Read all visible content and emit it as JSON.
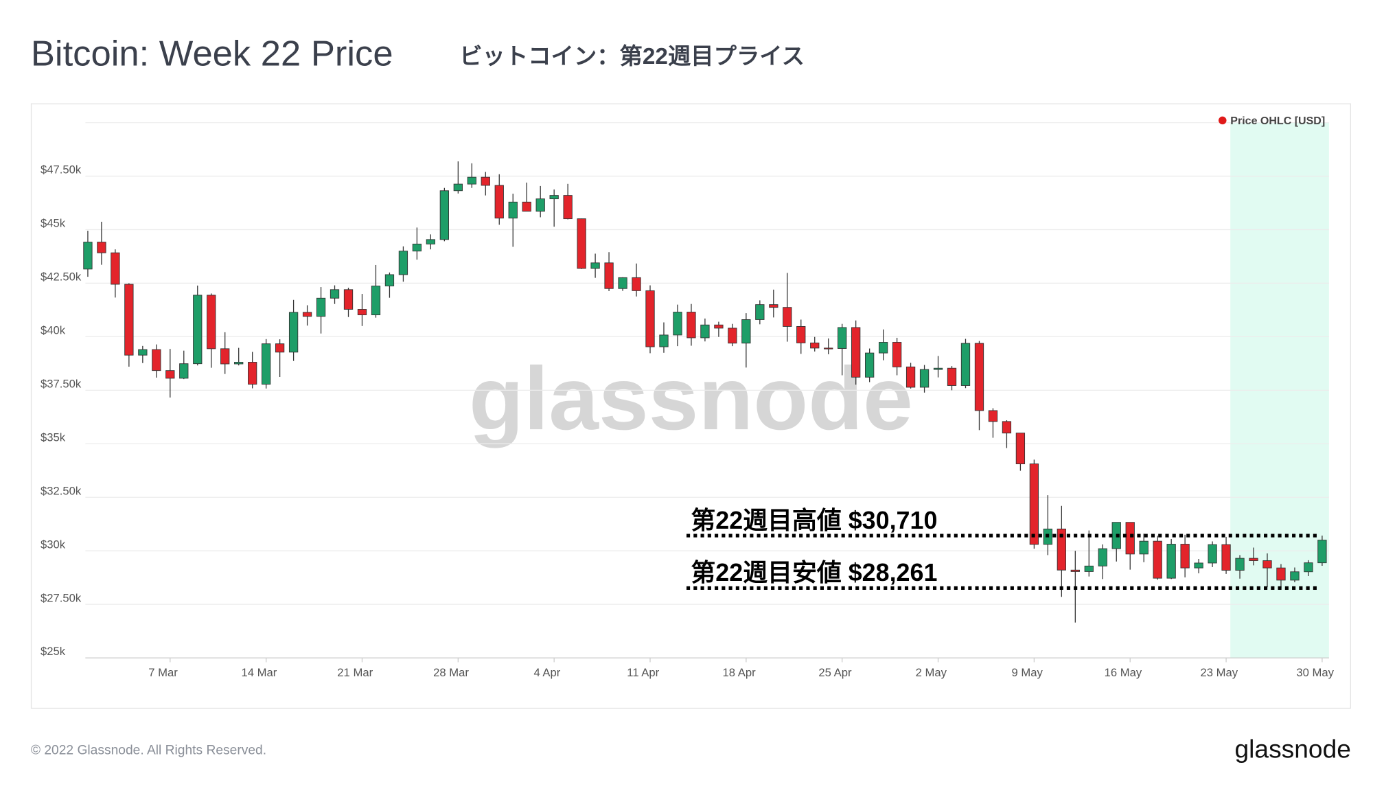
{
  "title": "Bitcoin: Week 22 Price",
  "subtitle": "ビットコイン：第22週目プライス",
  "footer": "© 2022 Glassnode. All Rights Reserved.",
  "logo": "glassnode",
  "chart_data": {
    "type": "candlestick",
    "watermark": "glassnode",
    "legend": "Price OHLC [USD]",
    "legend_color": "#e01a1a",
    "legend_position": "top-right",
    "up_color": "#1e9e68",
    "down_color": "#e3242b",
    "grid": true,
    "ylim": [
      25000,
      50000
    ],
    "yticks": [
      {
        "value": 25000,
        "label": "$25k"
      },
      {
        "value": 27500,
        "label": "$27.50k"
      },
      {
        "value": 30000,
        "label": "$30k"
      },
      {
        "value": 32500,
        "label": "$32.50k"
      },
      {
        "value": 35000,
        "label": "$35k"
      },
      {
        "value": 37500,
        "label": "$37.50k"
      },
      {
        "value": 40000,
        "label": "$40k"
      },
      {
        "value": 42500,
        "label": "$42.50k"
      },
      {
        "value": 45000,
        "label": "$45k"
      },
      {
        "value": 47500,
        "label": "$47.50k"
      }
    ],
    "categories": [
      null,
      null,
      null,
      null,
      null,
      null,
      "7 Mar",
      null,
      null,
      null,
      null,
      null,
      null,
      "14 Mar",
      null,
      null,
      null,
      null,
      null,
      null,
      "21 Mar",
      null,
      null,
      null,
      null,
      null,
      null,
      "28 Mar",
      null,
      null,
      null,
      null,
      null,
      null,
      "4 Apr",
      null,
      null,
      null,
      null,
      null,
      null,
      "11 Apr",
      null,
      null,
      null,
      null,
      null,
      null,
      "18 Apr",
      null,
      null,
      null,
      null,
      null,
      null,
      "25 Apr",
      null,
      null,
      null,
      null,
      null,
      null,
      "2 May",
      null,
      null,
      null,
      null,
      null,
      null,
      "9 May",
      null,
      null,
      null,
      null,
      null,
      null,
      "16 May",
      null,
      null,
      null,
      null,
      null,
      null,
      "23 May",
      null,
      null,
      null,
      null,
      null,
      null,
      "30 May"
    ],
    "open": [
      43160,
      44420,
      43920,
      42450,
      39140,
      39400,
      38420,
      38060,
      38740,
      41940,
      39440,
      38730,
      38810,
      37780,
      39670,
      39280,
      41140,
      40950,
      41800,
      42200,
      41280,
      41020,
      42370,
      42900,
      44000,
      44330,
      44540,
      46820,
      47130,
      47450,
      47070,
      45540,
      46290,
      45860,
      46440,
      46600,
      45510,
      43190,
      43450,
      42250,
      42760,
      42150,
      39530,
      40080,
      41150,
      39950,
      40550,
      40400,
      39700,
      40800,
      41500,
      41370,
      40480,
      39710,
      39470,
      39450,
      40430,
      38110,
      39240,
      39740,
      38590,
      37640,
      38470,
      38530,
      37720,
      39690,
      36550,
      36040,
      35500,
      34060,
      30300,
      31020,
      29100,
      29030,
      29290,
      30100,
      31330,
      29850,
      30450,
      28720,
      30310,
      29200,
      29430,
      30290,
      29090,
      29650,
      29540,
      29200,
      28630,
      29020,
      29440
    ],
    "high": [
      44950,
      45370,
      44080,
      42500,
      39570,
      39640,
      39430,
      39350,
      42390,
      42020,
      40210,
      39480,
      39290,
      39890,
      39880,
      41720,
      41470,
      42320,
      42400,
      42290,
      42000,
      43350,
      43000,
      44220,
      45100,
      44780,
      46950,
      48190,
      48100,
      47700,
      47590,
      46680,
      47200,
      47040,
      46880,
      47140,
      45520,
      43880,
      43950,
      42780,
      43420,
      42400,
      40670,
      41500,
      41530,
      40850,
      40700,
      40600,
      41100,
      41700,
      42200,
      42980,
      40800,
      39990,
      39920,
      40600,
      40760,
      39450,
      40340,
      39950,
      38780,
      38680,
      39100,
      38630,
      39900,
      39800,
      36660,
      36100,
      35500,
      34260,
      32600,
      32100,
      30000,
      30950,
      30300,
      31300,
      31330,
      30800,
      30700,
      30550,
      30750,
      29620,
      30440,
      30650,
      29800,
      30150,
      29880,
      29380,
      29220,
      29560,
      30710
    ],
    "low": [
      42800,
      43360,
      41830,
      38600,
      38770,
      38090,
      37160,
      38020,
      38660,
      38550,
      38260,
      38660,
      37590,
      37580,
      38120,
      38870,
      40520,
      40150,
      41530,
      40920,
      40500,
      40890,
      41820,
      42570,
      43600,
      44080,
      44460,
      46690,
      46950,
      46600,
      45230,
      44200,
      45870,
      45580,
      45140,
      45480,
      43160,
      42750,
      42130,
      42140,
      41880,
      39230,
      39250,
      39560,
      39580,
      39780,
      39990,
      39560,
      38560,
      40580,
      40900,
      39770,
      39200,
      39310,
      39180,
      38200,
      37760,
      37880,
      38900,
      38200,
      37580,
      37390,
      38100,
      37500,
      37600,
      35640,
      35280,
      34800,
      33740,
      30100,
      29800,
      27850,
      26650,
      28800,
      28680,
      29500,
      29120,
      29470,
      28650,
      28680,
      28760,
      28950,
      29240,
      28920,
      28700,
      29320,
      28300,
      28261,
      28530,
      28820,
      29300
    ],
    "close": [
      44420,
      43920,
      42450,
      39140,
      39400,
      38420,
      38060,
      38740,
      41940,
      39440,
      38730,
      38810,
      37780,
      39670,
      39280,
      41140,
      40950,
      41800,
      42200,
      41280,
      41020,
      42370,
      42900,
      44000,
      44330,
      44540,
      46820,
      47130,
      47450,
      47070,
      45540,
      46290,
      45860,
      46440,
      46600,
      45510,
      43190,
      43450,
      42250,
      42760,
      42150,
      39530,
      40080,
      41150,
      39950,
      40550,
      40400,
      39700,
      40800,
      41500,
      41370,
      40480,
      39710,
      39470,
      39450,
      40430,
      38110,
      39240,
      39740,
      38590,
      37640,
      38470,
      38530,
      37720,
      39690,
      36550,
      36040,
      35500,
      34060,
      30300,
      31020,
      29100,
      29030,
      29290,
      30100,
      31330,
      29850,
      30450,
      28720,
      30310,
      29200,
      29430,
      30290,
      29090,
      29650,
      29540,
      29200,
      28630,
      29020,
      29440,
      30500
    ],
    "annotations": [
      {
        "text": "第22週目高値 $30,710",
        "value": 30710
      },
      {
        "text": "第22週目安値 $28,261",
        "value": 28261
      }
    ]
  }
}
